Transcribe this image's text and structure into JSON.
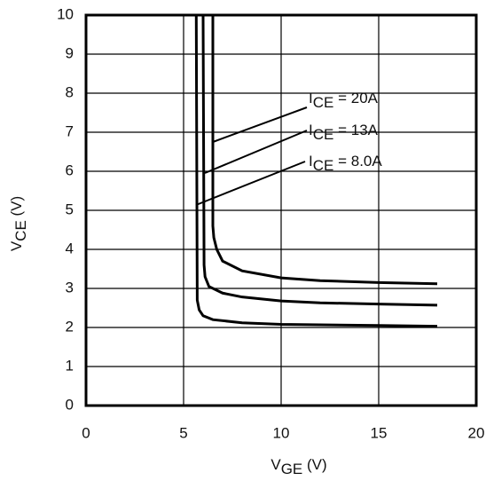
{
  "chart_data": {
    "type": "line",
    "xlabel": [
      "V",
      "GE",
      " (V)"
    ],
    "ylabel": [
      "V",
      "CE",
      " (V)"
    ],
    "xlim": [
      0,
      20
    ],
    "xticks": [
      0,
      5,
      10,
      15,
      20
    ],
    "ylim": [
      0,
      10
    ],
    "yticks": [
      0,
      1,
      2,
      3,
      4,
      5,
      6,
      7,
      8,
      9,
      10
    ],
    "grid": true,
    "color": "#000000",
    "series": [
      {
        "color": "#000000",
        "x": [
          6.5,
          6.5,
          6.55,
          6.7,
          7,
          8,
          10,
          12,
          15,
          18
        ],
        "values": [
          10,
          4.6,
          4.3,
          4.0,
          3.7,
          3.45,
          3.27,
          3.2,
          3.15,
          3.12
        ]
      },
      {
        "color": "#000000",
        "x": [
          6.0,
          6.05,
          6.1,
          6.3,
          7,
          8,
          10,
          12,
          15,
          18
        ],
        "values": [
          10,
          3.6,
          3.3,
          3.05,
          2.88,
          2.78,
          2.68,
          2.63,
          2.6,
          2.57
        ]
      },
      {
        "color": "#000000",
        "x": [
          5.65,
          5.7,
          5.8,
          6.0,
          6.5,
          8,
          10,
          15,
          18
        ],
        "values": [
          10,
          2.7,
          2.45,
          2.3,
          2.2,
          2.12,
          2.08,
          2.05,
          2.03
        ]
      }
    ],
    "annotations": [
      {
        "text": [
          "I",
          "CE",
          " = 20A"
        ]
      },
      {
        "text": [
          "I",
          "CE",
          " = 13A"
        ]
      },
      {
        "text": [
          "I",
          "CE",
          " = 8.0A"
        ]
      }
    ]
  }
}
